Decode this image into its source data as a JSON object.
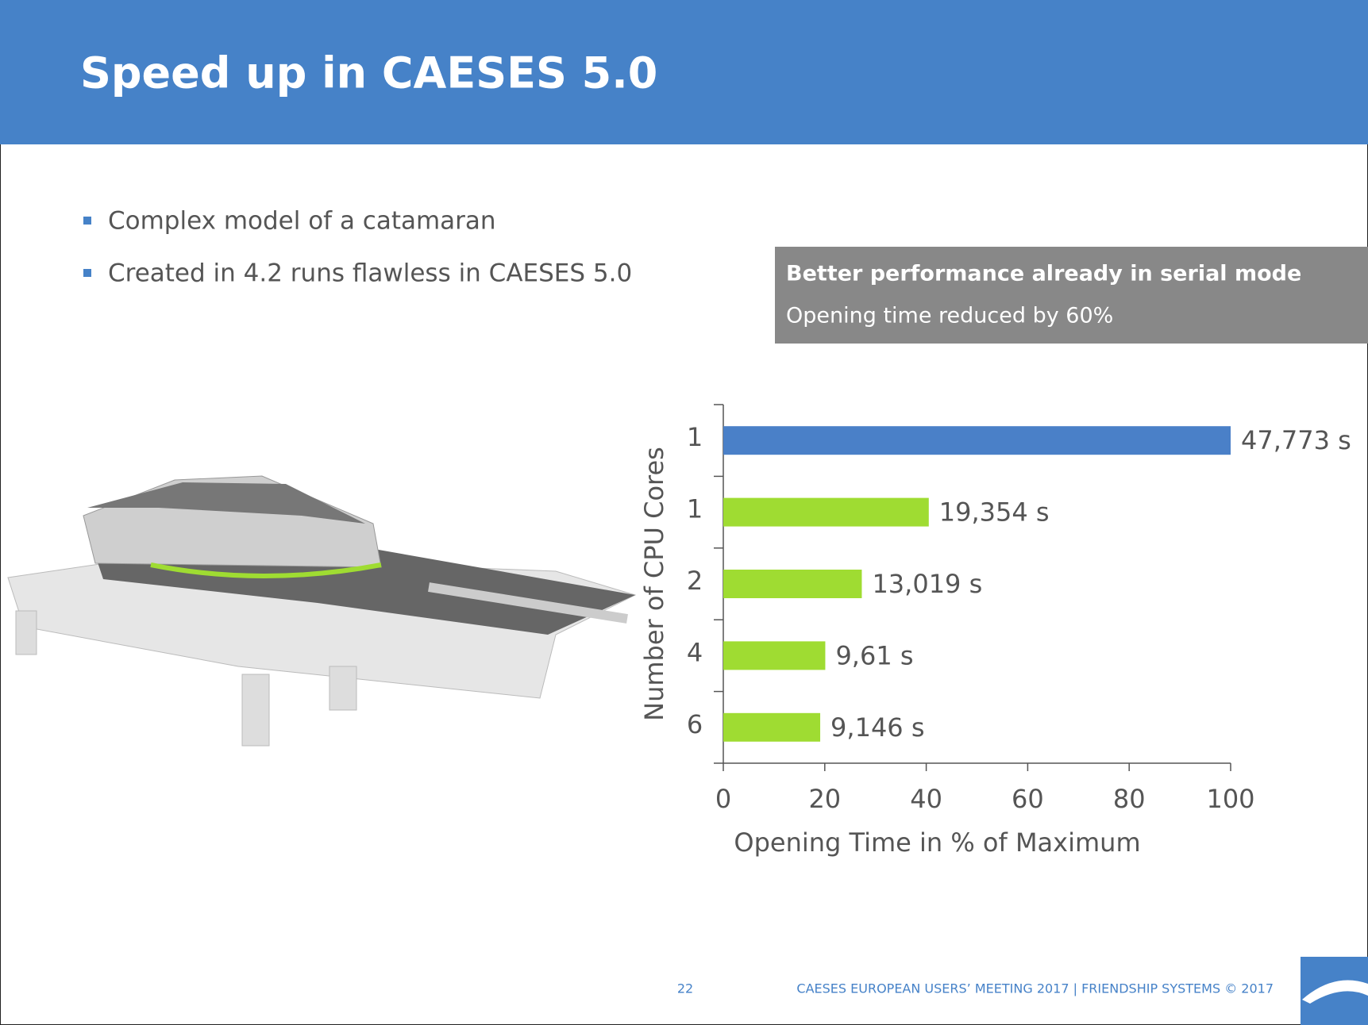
{
  "header": {
    "title": "Speed up in CAESES 5.0"
  },
  "bullets": [
    "Complex model of a catamaran",
    "Created in 4.2 runs flawless in CAESES 5.0"
  ],
  "callout": {
    "heading": "Better performance already in serial mode",
    "text": "Opening time reduced by 60%"
  },
  "chart_data": {
    "type": "hbar",
    "categories": [
      "1",
      "1",
      "2",
      "4",
      "6"
    ],
    "values": [
      100,
      40.5,
      27.3,
      20.1,
      19.1
    ],
    "bar_labels": [
      "47,773 s",
      "19,354 s",
      "13,019 s",
      "9,61 s",
      "9,146 s"
    ],
    "colors": [
      "#4a80c8",
      "#9fdc32",
      "#9fdc32",
      "#9fdc32",
      "#9fdc32"
    ],
    "xlim": [
      0,
      100
    ],
    "xticks": [
      0,
      20,
      40,
      60,
      80,
      100
    ],
    "xlabel": "Opening Time in % of Maximum",
    "ylabel": "Number of CPU Cores"
  },
  "footer": {
    "page": "22",
    "text": "CAESES EUROPEAN USERS’ MEETING 2017 | FRIENDSHIP SYSTEMS © 2017"
  }
}
